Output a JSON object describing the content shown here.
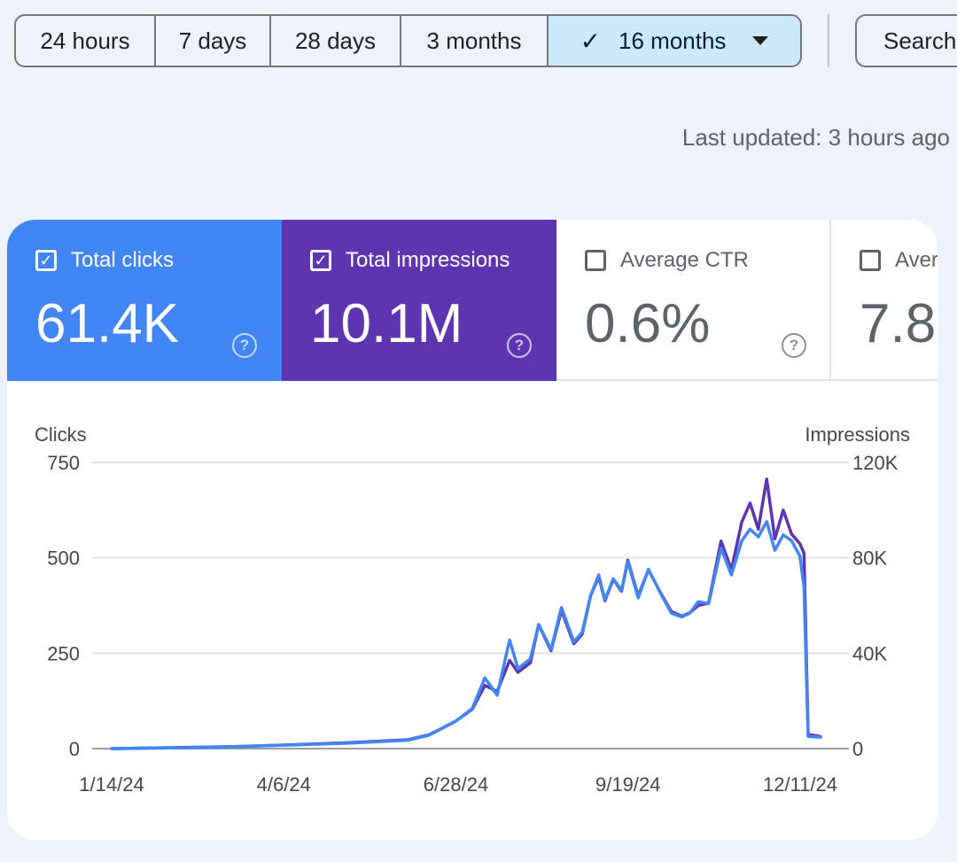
{
  "date_range": {
    "options": [
      "24 hours",
      "7 days",
      "28 days",
      "3 months",
      "16 months"
    ],
    "selected": "16 months"
  },
  "search_button": "Search",
  "last_updated": "Last updated: 3 hours ago",
  "metrics": {
    "clicks": {
      "label": "Total clicks",
      "value": "61.4K",
      "checked": true,
      "color": "#4285f4"
    },
    "impressions": {
      "label": "Total impressions",
      "value": "10.1M",
      "checked": true,
      "color": "#5e35b1"
    },
    "ctr": {
      "label": "Average CTR",
      "value": "0.6%",
      "checked": false
    },
    "position": {
      "label": "Aver",
      "value": "7.8",
      "checked": false
    }
  },
  "chart_data": {
    "type": "line",
    "left_axis_label": "Clicks",
    "right_axis_label": "Impressions",
    "left_ticks": [
      "750",
      "500",
      "250",
      "0"
    ],
    "right_ticks": [
      "120K",
      "80K",
      "40K",
      "0"
    ],
    "x_ticks": [
      "1/14/24",
      "4/6/24",
      "6/28/24",
      "9/19/24",
      "12/11/24"
    ],
    "ylim_left": [
      0,
      750
    ],
    "ylim_right": [
      0,
      120000
    ],
    "x_range": [
      "2024-01-14",
      "2024-12-21"
    ],
    "series": [
      {
        "name": "Clicks",
        "axis": "left",
        "color": "#4285f4",
        "x": [
          "2024-01-14",
          "2024-02-14",
          "2024-03-15",
          "2024-04-06",
          "2024-05-06",
          "2024-06-05",
          "2024-06-15",
          "2024-06-22",
          "2024-06-28",
          "2024-07-06",
          "2024-07-12",
          "2024-07-18",
          "2024-07-24",
          "2024-07-28",
          "2024-08-03",
          "2024-08-07",
          "2024-08-13",
          "2024-08-18",
          "2024-08-24",
          "2024-08-28",
          "2024-09-01",
          "2024-09-05",
          "2024-09-08",
          "2024-09-12",
          "2024-09-16",
          "2024-09-19",
          "2024-09-24",
          "2024-09-29",
          "2024-10-05",
          "2024-10-10",
          "2024-10-15",
          "2024-10-19",
          "2024-10-23",
          "2024-10-28",
          "2024-11-03",
          "2024-11-08",
          "2024-11-13",
          "2024-11-17",
          "2024-11-21",
          "2024-11-25",
          "2024-11-29",
          "2024-12-03",
          "2024-12-07",
          "2024-12-11",
          "2024-12-13",
          "2024-12-15",
          "2024-12-21"
        ],
        "values": [
          0,
          2,
          5,
          9,
          14,
          22,
          35,
          55,
          72,
          105,
          185,
          140,
          285,
          210,
          235,
          325,
          260,
          370,
          280,
          305,
          400,
          455,
          390,
          445,
          415,
          490,
          395,
          470,
          405,
          355,
          345,
          355,
          385,
          380,
          525,
          455,
          545,
          575,
          555,
          595,
          520,
          560,
          545,
          505,
          425,
          32,
          30
        ]
      },
      {
        "name": "Impressions",
        "axis": "right",
        "color": "#5e35b1",
        "x": [
          "2024-01-14",
          "2024-02-14",
          "2024-03-15",
          "2024-04-06",
          "2024-05-06",
          "2024-06-05",
          "2024-06-15",
          "2024-06-22",
          "2024-06-28",
          "2024-07-06",
          "2024-07-12",
          "2024-07-18",
          "2024-07-24",
          "2024-07-28",
          "2024-08-03",
          "2024-08-07",
          "2024-08-13",
          "2024-08-18",
          "2024-08-24",
          "2024-08-28",
          "2024-09-01",
          "2024-09-05",
          "2024-09-08",
          "2024-09-12",
          "2024-09-16",
          "2024-09-19",
          "2024-09-24",
          "2024-09-29",
          "2024-10-05",
          "2024-10-10",
          "2024-10-15",
          "2024-10-19",
          "2024-10-23",
          "2024-10-28",
          "2024-11-03",
          "2024-11-08",
          "2024-11-13",
          "2024-11-17",
          "2024-11-21",
          "2024-11-25",
          "2024-11-29",
          "2024-12-03",
          "2024-12-07",
          "2024-12-11",
          "2024-12-13",
          "2024-12-15",
          "2024-12-21"
        ],
        "values": [
          0,
          400,
          900,
          1500,
          2400,
          3700,
          5800,
          8800,
          11500,
          16500,
          26500,
          24000,
          37000,
          32000,
          36000,
          52000,
          41000,
          58000,
          44000,
          48000,
          64000,
          72000,
          62000,
          71000,
          66000,
          79000,
          64000,
          75000,
          65000,
          57500,
          55500,
          57000,
          60000,
          61000,
          87000,
          75000,
          95000,
          103000,
          92000,
          113000,
          88000,
          100000,
          90000,
          86000,
          82000,
          6000,
          5000
        ]
      }
    ]
  }
}
